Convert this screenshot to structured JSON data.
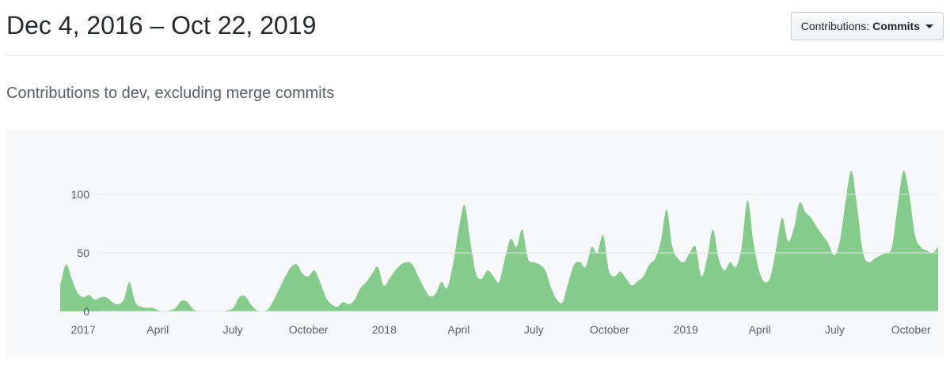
{
  "header": {
    "title": "Dec 4, 2016 – Oct 22, 2019",
    "filter_button": {
      "label": "Contributions:",
      "value": "Commits"
    }
  },
  "subtitle": "Contributions to dev, excluding merge commits",
  "chart_data": {
    "type": "area",
    "title": "Contributions to dev, excluding merge commits",
    "x_start_label": "Dec 4, 2016",
    "x_end_label": "Oct 22, 2019",
    "ylim": [
      0,
      130
    ],
    "y_ticks": [
      0,
      50,
      100
    ],
    "grid": "horizontal",
    "x_ticks": [
      {
        "label": "2017",
        "week": 4
      },
      {
        "label": "April",
        "week": 16.9
      },
      {
        "label": "July",
        "week": 29.9
      },
      {
        "label": "October",
        "week": 43
      },
      {
        "label": "2018",
        "week": 56.1
      },
      {
        "label": "April",
        "week": 69
      },
      {
        "label": "July",
        "week": 82
      },
      {
        "label": "October",
        "week": 95.1
      },
      {
        "label": "2019",
        "week": 108.3
      },
      {
        "label": "April",
        "week": 121.1
      },
      {
        "label": "July",
        "week": 134.1
      },
      {
        "label": "October",
        "week": 147.3
      }
    ],
    "values": [
      22,
      40,
      28,
      16,
      12,
      14,
      10,
      12,
      12,
      8,
      6,
      10,
      25,
      8,
      4,
      3,
      3,
      1,
      0,
      1,
      3,
      9,
      8,
      2,
      0,
      0,
      0,
      0,
      0,
      1,
      3,
      12,
      13,
      6,
      1,
      0,
      2,
      10,
      20,
      30,
      38,
      40,
      32,
      30,
      35,
      25,
      12,
      6,
      4,
      8,
      6,
      10,
      20,
      25,
      32,
      38,
      22,
      28,
      35,
      40,
      42,
      40,
      30,
      20,
      13,
      15,
      25,
      20,
      40,
      70,
      91,
      60,
      32,
      28,
      35,
      30,
      25,
      45,
      62,
      55,
      70,
      45,
      42,
      40,
      35,
      20,
      10,
      8,
      25,
      40,
      42,
      38,
      55,
      50,
      65,
      35,
      30,
      34,
      28,
      22,
      26,
      30,
      40,
      45,
      60,
      87,
      55,
      45,
      42,
      50,
      55,
      30,
      45,
      70,
      45,
      35,
      42,
      38,
      55,
      95,
      60,
      35,
      25,
      30,
      55,
      80,
      60,
      70,
      93,
      85,
      80,
      72,
      65,
      58,
      48,
      60,
      95,
      120,
      88,
      50,
      42,
      45,
      48,
      50,
      55,
      90,
      120,
      100,
      65,
      55,
      52,
      50,
      55
    ],
    "colors": {
      "area": "#84cb8c",
      "card_background": "#f6f8fa",
      "grid": "#e1e4e8",
      "axis_text": "#586069"
    }
  }
}
